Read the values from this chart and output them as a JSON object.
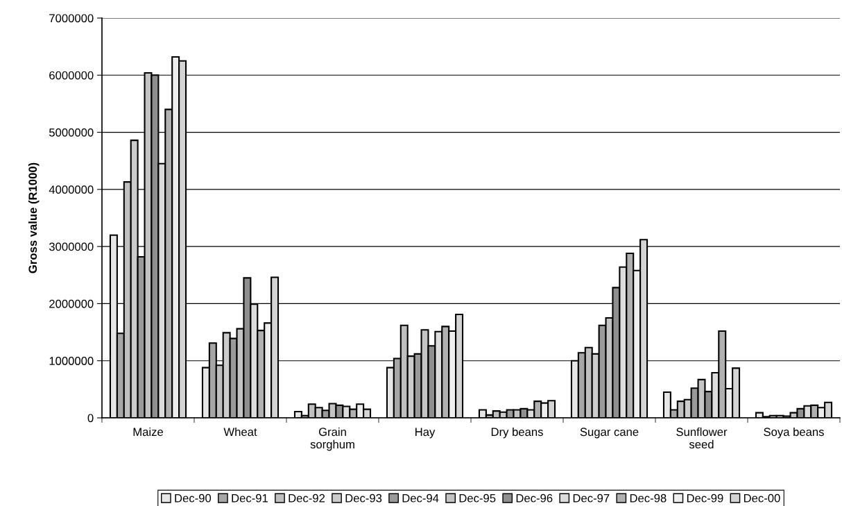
{
  "chart_data": {
    "type": "bar",
    "ylabel": "Gross value (R1000)",
    "categories": [
      "Maize",
      "Wheat",
      "Grain\nsorghum",
      "Hay",
      "Dry beans",
      "Sugar cane",
      "Sunflower\nseed",
      "Soya beans"
    ],
    "ylim": [
      0,
      7000000
    ],
    "yticks": [
      0,
      1000000,
      2000000,
      3000000,
      4000000,
      5000000,
      6000000,
      7000000
    ],
    "grid": "y",
    "legend": "bottom",
    "series": [
      {
        "name": "Dec-90",
        "color": "#e6e6e6",
        "values": [
          3200000,
          880000,
          110000,
          880000,
          140000,
          1000000,
          450000,
          90000
        ]
      },
      {
        "name": "Dec-91",
        "color": "#a6a6a6",
        "values": [
          1480000,
          1310000,
          40000,
          1040000,
          50000,
          1140000,
          140000,
          20000
        ]
      },
      {
        "name": "Dec-92",
        "color": "#bfbfbf",
        "values": [
          4130000,
          920000,
          240000,
          1620000,
          120000,
          1230000,
          290000,
          40000
        ]
      },
      {
        "name": "Dec-93",
        "color": "#cccccc",
        "values": [
          4860000,
          1490000,
          180000,
          1080000,
          100000,
          1120000,
          320000,
          40000
        ]
      },
      {
        "name": "Dec-94",
        "color": "#9a9a9a",
        "values": [
          2820000,
          1390000,
          130000,
          1120000,
          140000,
          1620000,
          520000,
          30000
        ]
      },
      {
        "name": "Dec-95",
        "color": "#c4c4c4",
        "values": [
          6040000,
          1560000,
          250000,
          1540000,
          140000,
          1750000,
          670000,
          90000
        ]
      },
      {
        "name": "Dec-96",
        "color": "#8f8f8f",
        "values": [
          6000000,
          2450000,
          220000,
          1260000,
          160000,
          2280000,
          460000,
          160000
        ]
      },
      {
        "name": "Dec-97",
        "color": "#dcdcdc",
        "values": [
          4450000,
          1990000,
          200000,
          1510000,
          140000,
          2640000,
          790000,
          210000
        ]
      },
      {
        "name": "Dec-98",
        "color": "#b0b0b0",
        "values": [
          5400000,
          1530000,
          150000,
          1600000,
          290000,
          2880000,
          1520000,
          220000
        ]
      },
      {
        "name": "Dec-99",
        "color": "#eeeeee",
        "values": [
          6320000,
          1660000,
          240000,
          1520000,
          260000,
          2580000,
          510000,
          180000
        ]
      },
      {
        "name": "Dec-00",
        "color": "#d4d4d4",
        "values": [
          6250000,
          2460000,
          150000,
          1810000,
          300000,
          3120000,
          870000,
          270000
        ]
      }
    ]
  }
}
